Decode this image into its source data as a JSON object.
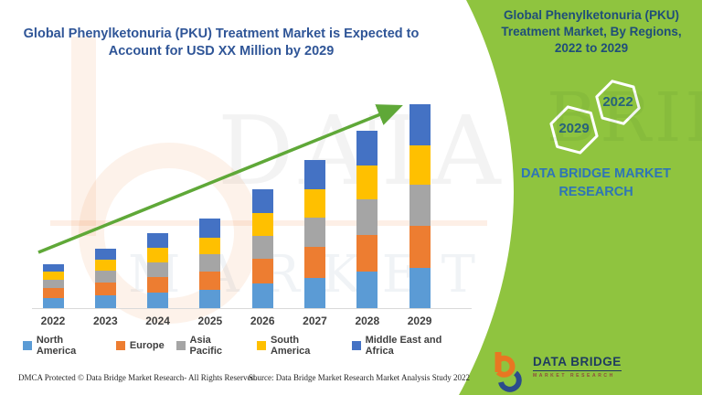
{
  "header": {
    "title_line1": "Global Phenylketonuria (PKU) Treatment Market is Expected to",
    "title_line2": "Account for USD XX Million by 2029"
  },
  "chart_data": {
    "type": "bar",
    "stacked": true,
    "title": "Global Phenylketonuria (PKU) Treatment Market is Expected to Account for USD XX Million by 2029",
    "categories": [
      "2022",
      "2023",
      "2024",
      "2025",
      "2026",
      "2027",
      "2028",
      "2029"
    ],
    "series": [
      {
        "name": "North America",
        "color": "#5B9BD5",
        "values": [
          11,
          14,
          17,
          20,
          27,
          33,
          40,
          44
        ]
      },
      {
        "name": "Europe",
        "color": "#ED7D31",
        "values": [
          11,
          14,
          17,
          20,
          27,
          34,
          40,
          46
        ]
      },
      {
        "name": "Asia Pacific",
        "color": "#A5A5A5",
        "values": [
          9,
          13,
          16,
          19,
          25,
          32,
          39,
          45
        ]
      },
      {
        "name": "South America",
        "color": "#FFC000",
        "values": [
          9,
          12,
          16,
          18,
          25,
          31,
          37,
          43
        ]
      },
      {
        "name": "Middle East and Africa",
        "color": "#4472C4",
        "values": [
          8,
          12,
          16,
          21,
          26,
          32,
          38,
          45
        ]
      }
    ],
    "value_note": "Y values are unlabeled on the chart (USD XX Million); series values are relative index units read from bar heights",
    "xlabel": "",
    "ylabel": "",
    "ylim": [
      0,
      240
    ],
    "grid": false,
    "legend_position": "bottom",
    "trend_arrow": {
      "show": true,
      "color": "#5FA838"
    }
  },
  "side_panel": {
    "bg_color": "#8FC43F",
    "title_line1": "Global Phenylketonuria (PKU)",
    "title_line2": "Treatment Market, By Regions,",
    "title_line3": "2022 to 2029",
    "hexagons": [
      {
        "label": "2029"
      },
      {
        "label": "2022"
      }
    ],
    "brand_line1": "DATA BRIDGE MARKET",
    "brand_line2": "RESEARCH",
    "logo": {
      "title": "DATA BRIDGE",
      "subtitle": "MARKET RESEARCH"
    }
  },
  "watermarks": {
    "chart_text": "DATA BRI",
    "chart_text2": "MARKET RE",
    "panel_text": "BRIDGE"
  },
  "footer": {
    "left": "DMCA Protected © Data Bridge Market Research- All Rights Reserved.",
    "right": "Source: Data Bridge Market Research Market Analysis Study 2022"
  }
}
